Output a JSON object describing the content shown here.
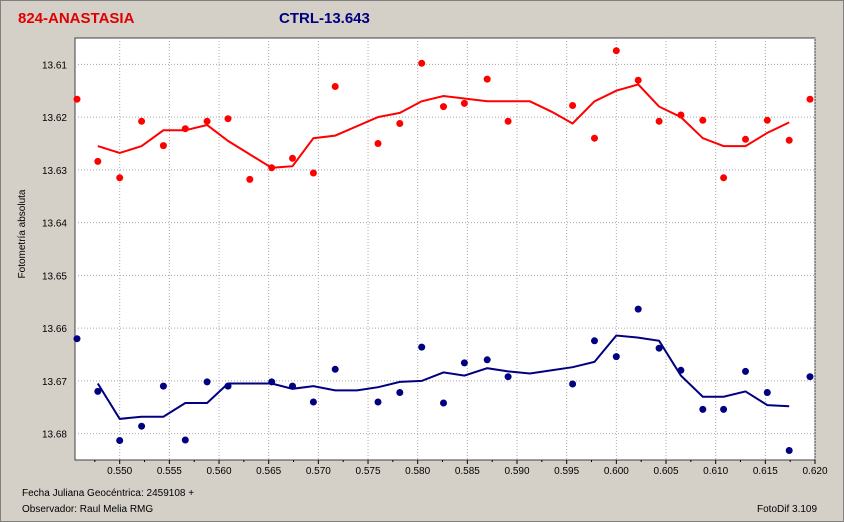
{
  "titles": {
    "target": "824-ANASTASIA",
    "control": "CTRL-13.643"
  },
  "footer": {
    "jd_label": "Fecha Juliana Geocéntrica: 2459108 +",
    "observer": "Observador: Raul Melia RMG",
    "software": "FotoDif 3.109"
  },
  "colors": {
    "target": "#ff0000",
    "control": "#000080",
    "plot_bg": "#ffffff",
    "grid": "#a8a8a8",
    "window": "#d4d0c8"
  },
  "chart_data": {
    "type": "scatter",
    "ylabel": "Fotometría absoluta",
    "xlim": [
      0.5455,
      0.62
    ],
    "ylim": [
      13.605,
      13.685
    ],
    "y_inverted": true,
    "grid": true,
    "x_ticks": [
      "0.550",
      "0.555",
      "0.560",
      "0.565",
      "0.570",
      "0.575",
      "0.580",
      "0.585",
      "0.590",
      "0.595",
      "0.600",
      "0.605",
      "0.610",
      "0.615",
      "0.620"
    ],
    "y_ticks": [
      "13.61",
      "13.62",
      "13.63",
      "13.64",
      "13.65",
      "13.66",
      "13.67",
      "13.68"
    ],
    "series": [
      {
        "color": "#ff0000",
        "points": [
          [
            0.5457,
            13.6166
          ],
          [
            0.5478,
            13.6284
          ],
          [
            0.55,
            13.6315
          ],
          [
            0.5522,
            13.6208
          ],
          [
            0.5544,
            13.6254
          ],
          [
            0.5566,
            13.6222
          ],
          [
            0.5588,
            13.6208
          ],
          [
            0.5609,
            13.6203
          ],
          [
            0.5631,
            13.6318
          ],
          [
            0.5653,
            13.6296
          ],
          [
            0.5674,
            13.6278
          ],
          [
            0.5695,
            13.6306
          ],
          [
            0.5717,
            13.6142
          ],
          [
            0.576,
            13.625
          ],
          [
            0.5782,
            13.6212
          ],
          [
            0.5804,
            13.6098
          ],
          [
            0.5826,
            13.618
          ],
          [
            0.5847,
            13.6174
          ],
          [
            0.587,
            13.6128
          ],
          [
            0.5891,
            13.6208
          ],
          [
            0.5956,
            13.6178
          ],
          [
            0.5978,
            13.624
          ],
          [
            0.6,
            13.6074
          ],
          [
            0.6022,
            13.613
          ],
          [
            0.6043,
            13.6208
          ],
          [
            0.6065,
            13.6196
          ],
          [
            0.6087,
            13.6206
          ],
          [
            0.6108,
            13.6315
          ],
          [
            0.613,
            13.6242
          ],
          [
            0.6152,
            13.6206
          ],
          [
            0.6174,
            13.6244
          ],
          [
            0.6195,
            13.6166
          ]
        ],
        "line": [
          [
            0.5478,
            13.6255
          ],
          [
            0.55,
            13.6268
          ],
          [
            0.5522,
            13.6255
          ],
          [
            0.5544,
            13.6225
          ],
          [
            0.5566,
            13.6225
          ],
          [
            0.5588,
            13.6215
          ],
          [
            0.5609,
            13.6245
          ],
          [
            0.5653,
            13.6296
          ],
          [
            0.5674,
            13.6293
          ],
          [
            0.5695,
            13.624
          ],
          [
            0.5717,
            13.6235
          ],
          [
            0.576,
            13.62
          ],
          [
            0.5782,
            13.6192
          ],
          [
            0.5804,
            13.617
          ],
          [
            0.5826,
            13.616
          ],
          [
            0.587,
            13.617
          ],
          [
            0.5913,
            13.617
          ],
          [
            0.5935,
            13.619
          ],
          [
            0.5956,
            13.6212
          ],
          [
            0.5978,
            13.617
          ],
          [
            0.6,
            13.615
          ],
          [
            0.6022,
            13.6138
          ],
          [
            0.6043,
            13.618
          ],
          [
            0.6065,
            13.62
          ],
          [
            0.6087,
            13.624
          ],
          [
            0.6108,
            13.6255
          ],
          [
            0.613,
            13.6255
          ],
          [
            0.6152,
            13.623
          ],
          [
            0.6174,
            13.621
          ]
        ]
      },
      {
        "color": "#000080",
        "points": [
          [
            0.5457,
            13.662
          ],
          [
            0.5478,
            13.672
          ],
          [
            0.55,
            13.6813
          ],
          [
            0.5522,
            13.6786
          ],
          [
            0.5544,
            13.671
          ],
          [
            0.5566,
            13.6812
          ],
          [
            0.5588,
            13.6702
          ],
          [
            0.5609,
            13.671
          ],
          [
            0.5653,
            13.6702
          ],
          [
            0.5674,
            13.671
          ],
          [
            0.5695,
            13.674
          ],
          [
            0.5717,
            13.6678
          ],
          [
            0.576,
            13.674
          ],
          [
            0.5782,
            13.6722
          ],
          [
            0.5804,
            13.6636
          ],
          [
            0.5826,
            13.6742
          ],
          [
            0.5847,
            13.6666
          ],
          [
            0.587,
            13.666
          ],
          [
            0.5891,
            13.6692
          ],
          [
            0.5956,
            13.6706
          ],
          [
            0.5978,
            13.6624
          ],
          [
            0.6,
            13.6654
          ],
          [
            0.6022,
            13.6564
          ],
          [
            0.6043,
            13.6638
          ],
          [
            0.6065,
            13.668
          ],
          [
            0.6087,
            13.6754
          ],
          [
            0.6108,
            13.6754
          ],
          [
            0.613,
            13.6682
          ],
          [
            0.6152,
            13.6722
          ],
          [
            0.6174,
            13.6832
          ],
          [
            0.6195,
            13.6692
          ]
        ],
        "line": [
          [
            0.5478,
            13.6705
          ],
          [
            0.55,
            13.6772
          ],
          [
            0.5522,
            13.6768
          ],
          [
            0.5544,
            13.6768
          ],
          [
            0.5566,
            13.6742
          ],
          [
            0.5588,
            13.6742
          ],
          [
            0.5609,
            13.6705
          ],
          [
            0.5631,
            13.6705
          ],
          [
            0.5653,
            13.6705
          ],
          [
            0.5674,
            13.6715
          ],
          [
            0.5695,
            13.671
          ],
          [
            0.5717,
            13.6718
          ],
          [
            0.5739,
            13.6718
          ],
          [
            0.576,
            13.6712
          ],
          [
            0.5782,
            13.6702
          ],
          [
            0.5804,
            13.67
          ],
          [
            0.5826,
            13.6684
          ],
          [
            0.5847,
            13.669
          ],
          [
            0.587,
            13.6676
          ],
          [
            0.5891,
            13.6682
          ],
          [
            0.5913,
            13.6686
          ],
          [
            0.5935,
            13.668
          ],
          [
            0.5956,
            13.6674
          ],
          [
            0.5978,
            13.6664
          ],
          [
            0.6,
            13.6614
          ],
          [
            0.6022,
            13.6618
          ],
          [
            0.6043,
            13.6624
          ],
          [
            0.6065,
            13.669
          ],
          [
            0.6087,
            13.673
          ],
          [
            0.6108,
            13.673
          ],
          [
            0.613,
            13.672
          ],
          [
            0.6152,
            13.6746
          ],
          [
            0.6174,
            13.6748
          ]
        ]
      }
    ]
  }
}
